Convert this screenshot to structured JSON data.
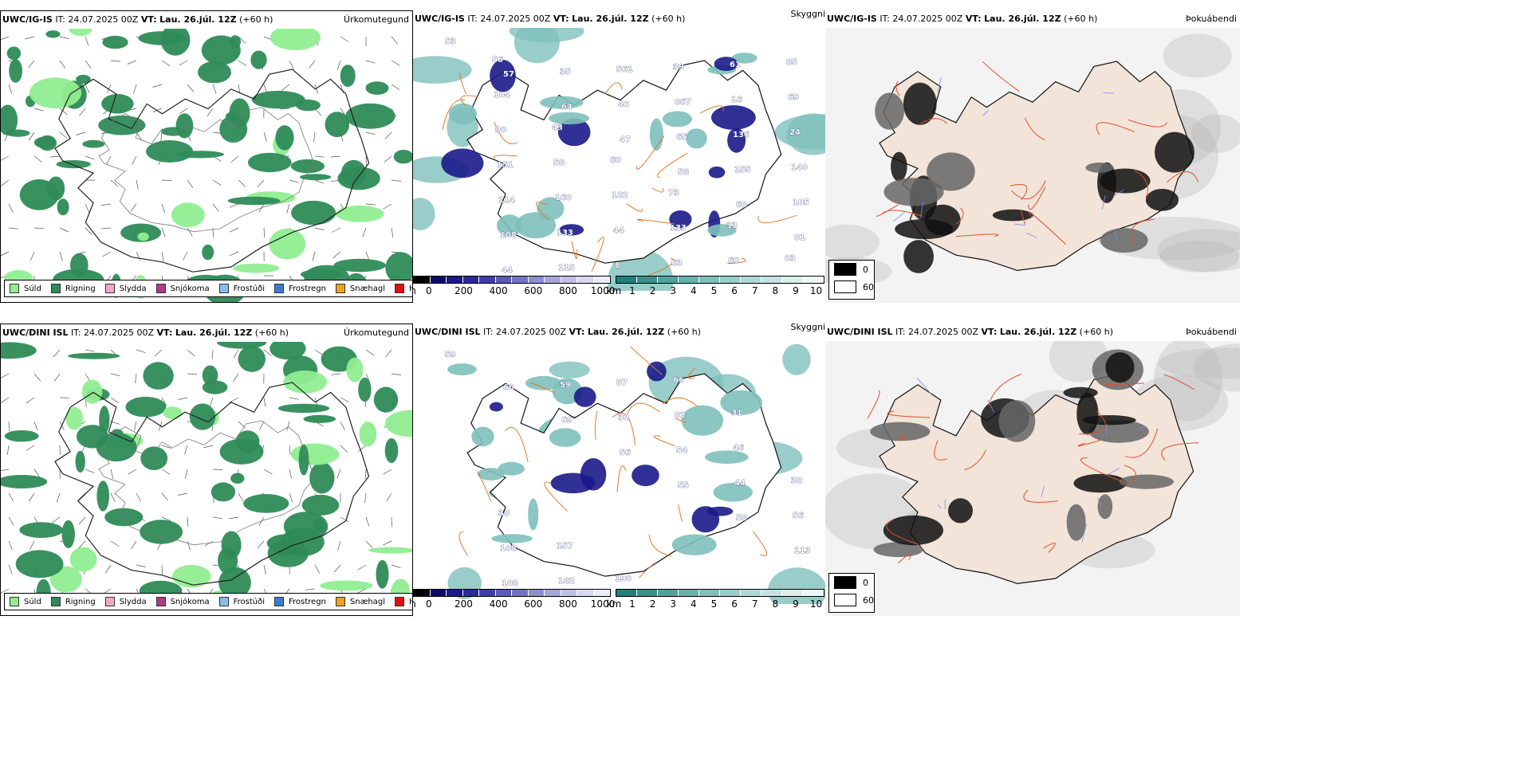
{
  "rows": [
    {
      "model": "UWC/IG-IS",
      "it_label": "IT:",
      "it_value": "24.07.2025 00Z",
      "vt_label": "VT:",
      "vt_value": "Lau. 26.júl. 12Z",
      "lead": "(+60 h)",
      "panels": {
        "precip": {
          "type": "Úrkomutegund"
        },
        "visibility": {
          "type": "Skyggni",
          "labels": [
            "53",
            "57",
            "64",
            "47",
            "58",
            "60",
            "81",
            "44",
            "35",
            "40",
            "65",
            "155",
            "105",
            "108",
            "115",
            "561",
            "867",
            "136",
            "140",
            "114",
            "133",
            "8",
            "39",
            "16",
            "24",
            "151",
            "160",
            "44",
            "63",
            "61",
            "69",
            "90",
            "58",
            "182",
            "133",
            "60",
            "85",
            "104",
            "43",
            "60",
            "73",
            "33",
            "03",
            "56"
          ]
        },
        "fog": {
          "type": "Þokuábendi"
        }
      }
    },
    {
      "model": "UWC/DINI ISL",
      "it_label": "IT:",
      "it_value": "24.07.2025 00Z",
      "vt_label": "VT:",
      "vt_value": "Lau. 26.júl. 12Z",
      "lead": "(+60 h)",
      "panels": {
        "precip": {
          "type": "Úrkomutegund"
        },
        "visibility": {
          "type": "Skyggni",
          "labels": [
            "59",
            "60",
            "69",
            "56",
            "55",
            "58",
            "113",
            "108",
            "59",
            "38",
            "54",
            "44",
            "56",
            "108",
            "182",
            "87",
            "82",
            "46",
            "38",
            "38",
            "157",
            "190",
            "66",
            "31"
          ]
        },
        "fog": {
          "type": "Þokuábendi"
        }
      }
    }
  ],
  "precip_legend": [
    {
      "label": "Súld",
      "color": "#90ee90"
    },
    {
      "label": "Rigning",
      "color": "#2e8b57"
    },
    {
      "label": "Slydda",
      "color": "#f4a6c8"
    },
    {
      "label": "Snjókoma",
      "color": "#b03a8a"
    },
    {
      "label": "Frostúði",
      "color": "#87bde8"
    },
    {
      "label": "Frostregn",
      "color": "#3a7bd5"
    },
    {
      "label": "Snæhagl",
      "color": "#f0a020"
    },
    {
      "label": "Haglél",
      "color": "#e01010"
    }
  ],
  "cloudbase_bar": {
    "unit": "m",
    "ticks": [
      "0",
      "200",
      "400",
      "600",
      "800",
      "1000"
    ],
    "colors": [
      "#000000",
      "#0a0a6a",
      "#1a1a8a",
      "#2a2a9a",
      "#3e3eaa",
      "#5a5ab8",
      "#7373c3",
      "#8d8dcf",
      "#a6a6da",
      "#c0c0e6",
      "#d8d8f0",
      "#ececf8"
    ]
  },
  "vis_bar": {
    "unit": "km",
    "ticks": [
      "1",
      "2",
      "3",
      "4",
      "5",
      "6",
      "7",
      "8",
      "9",
      "10"
    ],
    "colors": [
      "#1f7f7a",
      "#3a908b",
      "#52a19c",
      "#69b1ac",
      "#80c0bb",
      "#97cec9",
      "#add9d5",
      "#c3e4e1",
      "#d8efec",
      "#ecf7f6"
    ]
  },
  "fog_legend": [
    {
      "value": "0",
      "color": "#000000"
    },
    {
      "value": "60",
      "color": "#ffffff"
    }
  ]
}
